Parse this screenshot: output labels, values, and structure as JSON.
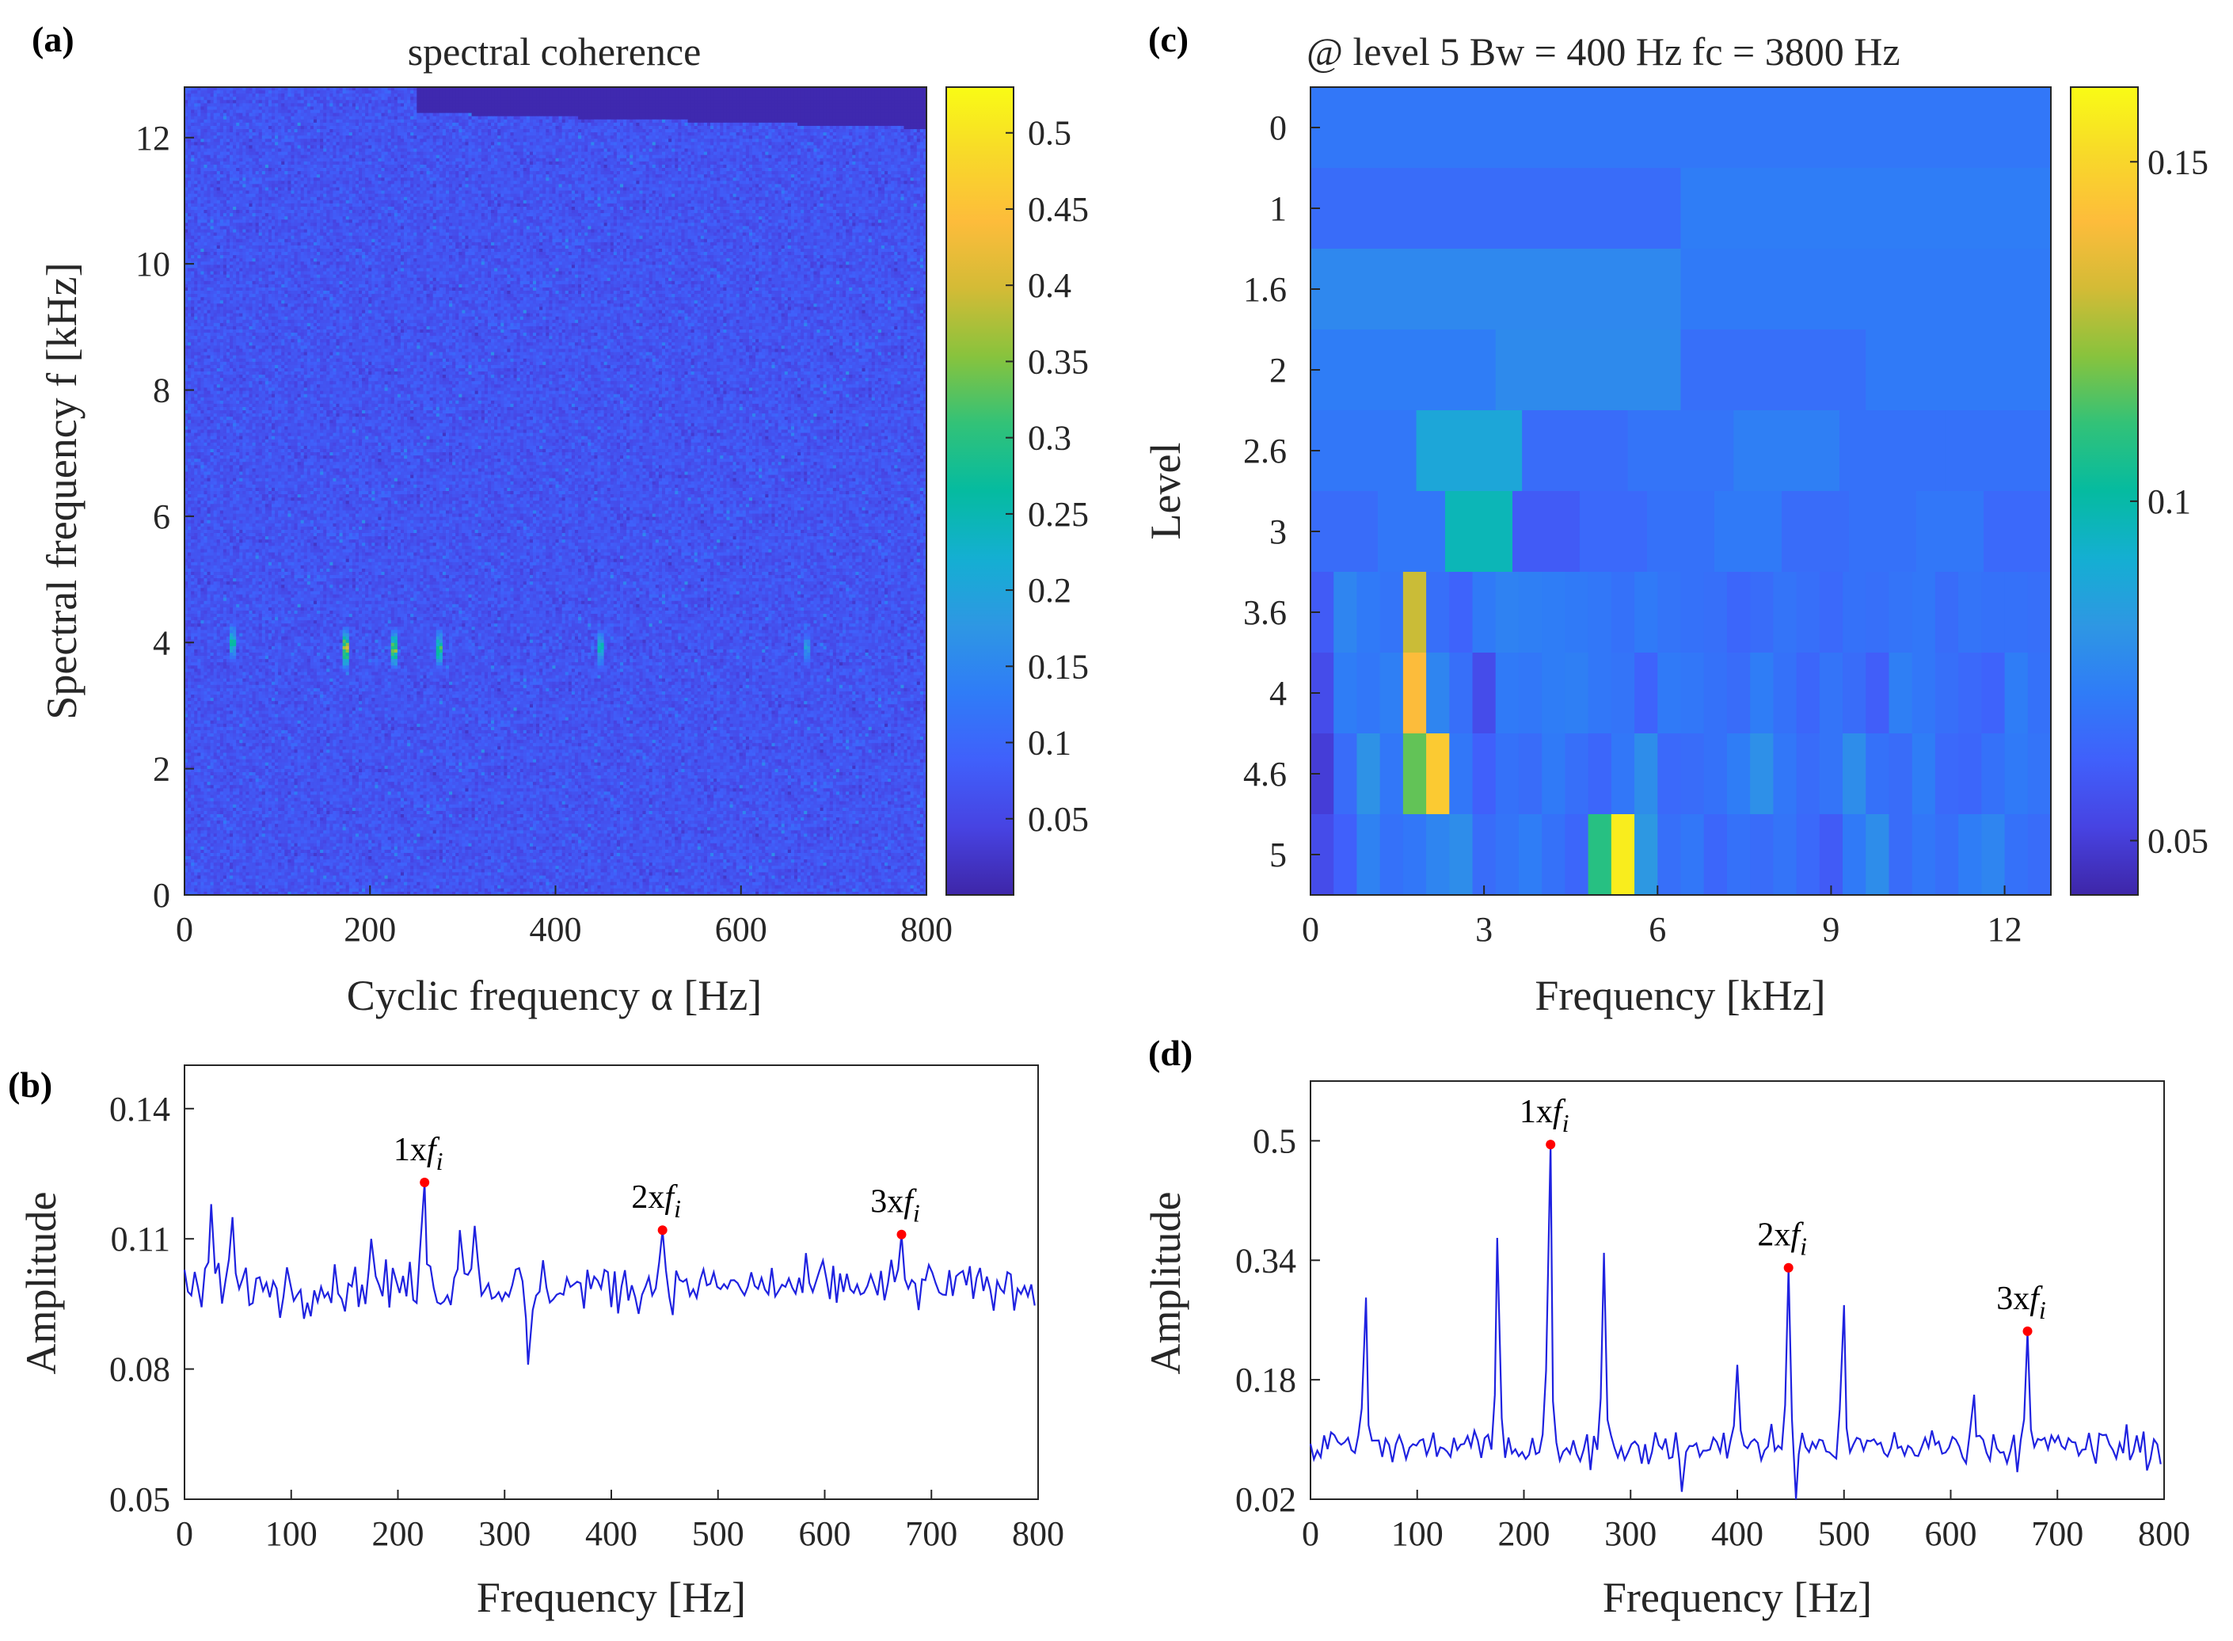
{
  "panel_labels": [
    "(a)",
    "(b)",
    "(c)",
    "(d)"
  ],
  "colors": {
    "line": "#1f22e0",
    "peak_marker": "#ff0000",
    "axis": "#262626",
    "colormap": [
      "#3e26a8",
      "#4743e2",
      "#4060fb",
      "#2f7cf7",
      "#2e97e3",
      "#14afd2",
      "#05bba0",
      "#32c278",
      "#88c33d",
      "#d3bb36",
      "#fdbc3b",
      "#f8d929",
      "#f9fb15"
    ]
  },
  "chart_data": [
    {
      "id": "a",
      "type": "heatmap",
      "title": "spectral coherence",
      "xlabel": "Cyclic frequency α [Hz]",
      "ylabel": "Spectral frequency f [kHz]",
      "xlim": [
        0,
        800
      ],
      "ylim": [
        0,
        12.8
      ],
      "xticks": [
        "0",
        "200",
        "400",
        "600",
        "800"
      ],
      "yticks": [
        "0",
        "2",
        "4",
        "6",
        "8",
        "10",
        "12"
      ],
      "colorbar": {
        "range": [
          0,
          0.53
        ],
        "ticks": [
          "0.05",
          "0.1",
          "0.15",
          "0.2",
          "0.25",
          "0.3",
          "0.35",
          "0.4",
          "0.45",
          "0.5"
        ]
      },
      "background_level": 0.07,
      "hot_spots": [
        {
          "alpha": 52,
          "f": 4.0,
          "value": 0.3
        },
        {
          "alpha": 173,
          "f": 3.9,
          "value": 0.45
        },
        {
          "alpha": 225,
          "f": 3.9,
          "value": 0.4
        },
        {
          "alpha": 275,
          "f": 3.9,
          "value": 0.35
        },
        {
          "alpha": 448,
          "f": 3.9,
          "value": 0.3
        },
        {
          "alpha": 672,
          "f": 3.9,
          "value": 0.22
        }
      ]
    },
    {
      "id": "b",
      "type": "line",
      "xlabel": "Frequency [Hz]",
      "ylabel": "Amplitude",
      "xlim": [
        0,
        800
      ],
      "ylim": [
        0.05,
        0.15
      ],
      "xticks": [
        "0",
        "100",
        "200",
        "300",
        "400",
        "500",
        "600",
        "700",
        "800"
      ],
      "yticks": [
        "0.05",
        "0.08",
        "0.11",
        "0.14"
      ],
      "baseline": 0.099,
      "peaks": [
        {
          "x": 225,
          "y": 0.123,
          "label": "1x",
          "italic": "f",
          "sub": "i"
        },
        {
          "x": 448,
          "y": 0.112,
          "label": "2x",
          "italic": "f",
          "sub": "i"
        },
        {
          "x": 672,
          "y": 0.111,
          "label": "3x",
          "italic": "f",
          "sub": "i"
        }
      ],
      "spikes": [
        {
          "x": 25,
          "y": 0.118
        },
        {
          "x": 45,
          "y": 0.115
        },
        {
          "x": 175,
          "y": 0.11
        },
        {
          "x": 258,
          "y": 0.112
        },
        {
          "x": 272,
          "y": 0.113
        },
        {
          "x": 322,
          "y": 0.081
        }
      ]
    },
    {
      "id": "c",
      "type": "heatmap",
      "title": "@ level 5  Bw = 400 Hz   fc = 3800 Hz",
      "xlabel": "Frequency [kHz]",
      "ylabel": "Level",
      "xlim": [
        0,
        12.8
      ],
      "xticks": [
        "0",
        "3",
        "6",
        "9",
        "12"
      ],
      "levels": [
        "0",
        "1",
        "1.6",
        "2",
        "2.6",
        "3",
        "3.6",
        "4",
        "4.6",
        "5"
      ],
      "colorbar": {
        "range": [
          0.042,
          0.161
        ],
        "ticks": [
          "0.05",
          "0.1",
          "0.15"
        ]
      },
      "rows": [
        [
          0.07
        ],
        [
          0.066,
          0.072
        ],
        [
          0.076,
          0.071
        ],
        [
          0.072,
          0.077,
          0.067,
          0.071
        ],
        [
          0.07,
          0.088,
          0.066,
          0.069,
          0.073,
          0.068,
          0.068
        ],
        [
          0.066,
          0.07,
          0.097,
          0.06,
          0.065,
          0.068,
          0.071,
          0.066,
          0.068,
          0.07,
          0.065
        ],
        [
          0.06,
          0.075,
          0.071,
          0.069,
          0.13,
          0.067,
          0.063,
          0.071,
          0.074,
          0.073,
          0.072,
          0.071,
          0.07,
          0.068,
          0.071,
          0.069,
          0.068,
          0.067,
          0.064,
          0.066,
          0.069,
          0.067,
          0.065,
          0.068,
          0.067,
          0.069,
          0.07,
          0.066,
          0.069,
          0.068,
          0.068,
          0.067
        ],
        [
          0.055,
          0.072,
          0.07,
          0.073,
          0.141,
          0.075,
          0.067,
          0.055,
          0.071,
          0.07,
          0.072,
          0.073,
          0.07,
          0.069,
          0.063,
          0.071,
          0.07,
          0.068,
          0.066,
          0.072,
          0.068,
          0.064,
          0.069,
          0.066,
          0.061,
          0.073,
          0.07,
          0.067,
          0.065,
          0.063,
          0.072,
          0.068
        ],
        [
          0.05,
          0.066,
          0.08,
          0.07,
          0.117,
          0.146,
          0.07,
          0.062,
          0.068,
          0.066,
          0.071,
          0.067,
          0.064,
          0.07,
          0.078,
          0.065,
          0.066,
          0.068,
          0.072,
          0.079,
          0.07,
          0.066,
          0.069,
          0.078,
          0.068,
          0.066,
          0.072,
          0.065,
          0.064,
          0.068,
          0.071,
          0.069
        ],
        [
          0.055,
          0.062,
          0.074,
          0.068,
          0.07,
          0.075,
          0.078,
          0.066,
          0.069,
          0.072,
          0.068,
          0.064,
          0.109,
          0.157,
          0.082,
          0.067,
          0.07,
          0.064,
          0.068,
          0.066,
          0.069,
          0.065,
          0.06,
          0.071,
          0.078,
          0.066,
          0.07,
          0.067,
          0.072,
          0.075,
          0.068,
          0.066
        ]
      ]
    },
    {
      "id": "d",
      "type": "line",
      "xlabel": "Frequency [Hz]",
      "ylabel": "Amplitude",
      "xlim": [
        0,
        800
      ],
      "ylim": [
        0.02,
        0.58
      ],
      "xticks": [
        "0",
        "100",
        "200",
        "300",
        "400",
        "500",
        "600",
        "700",
        "800"
      ],
      "yticks": [
        "0.02",
        "0.18",
        "0.34",
        "0.5"
      ],
      "baseline": 0.09,
      "peaks": [
        {
          "x": 225,
          "y": 0.495,
          "label": "1x",
          "italic": "f",
          "sub": "i"
        },
        {
          "x": 448,
          "y": 0.33,
          "label": "2x",
          "italic": "f",
          "sub": "i"
        },
        {
          "x": 672,
          "y": 0.245,
          "label": "3x",
          "italic": "f",
          "sub": "i"
        }
      ],
      "spikes": [
        {
          "x": 52,
          "y": 0.29
        },
        {
          "x": 175,
          "y": 0.37
        },
        {
          "x": 275,
          "y": 0.35
        },
        {
          "x": 400,
          "y": 0.2
        },
        {
          "x": 500,
          "y": 0.28
        },
        {
          "x": 455,
          "y": 0.02
        },
        {
          "x": 348,
          "y": 0.03
        },
        {
          "x": 622,
          "y": 0.16
        }
      ]
    }
  ]
}
